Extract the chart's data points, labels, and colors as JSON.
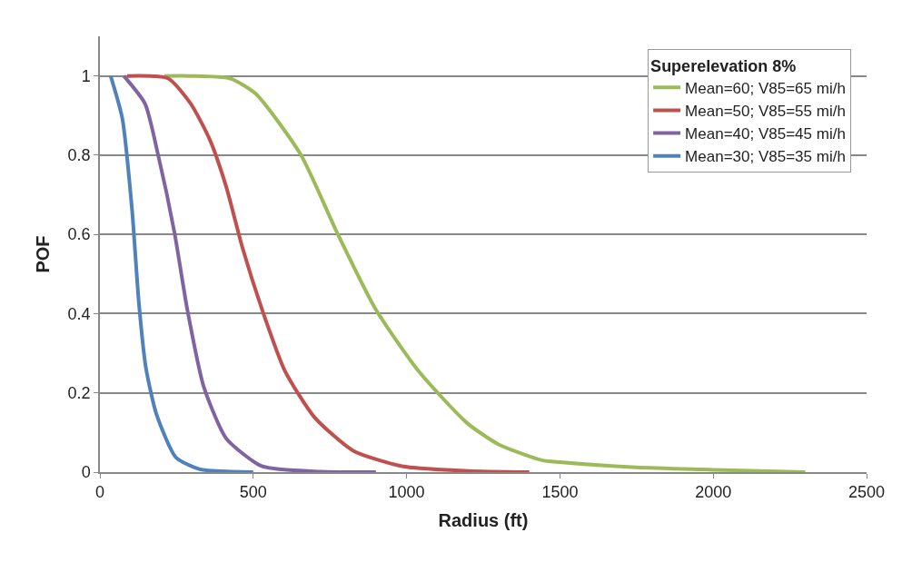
{
  "chart_data": {
    "type": "line",
    "xlabel": "Radius (ft)",
    "ylabel": "POF",
    "legend_title": "Superelevation 8%",
    "xlim": [
      0,
      2500
    ],
    "xticks": [
      0,
      500,
      1000,
      1500,
      2000,
      2500
    ],
    "ylim": [
      0,
      1.1
    ],
    "yticks": [
      0,
      0.2,
      0.4,
      0.6,
      0.8,
      1
    ],
    "grid": "y",
    "legend": "top right",
    "marker": "none",
    "line_style": "solid",
    "series": [
      {
        "name": "Mean=60; V85=65 mi/h",
        "color": "#9bbb59",
        "x": [
          210,
          296,
          423,
          508,
          656,
          773,
          900,
          1038,
          1197,
          1300,
          1441,
          1500,
          1750,
          2000,
          2300
        ],
        "values": [
          1,
          1,
          0.994,
          0.955,
          0.8,
          0.605,
          0.41,
          0.256,
          0.124,
          0.07,
          0.03,
          0.025,
          0.012,
          0.006,
          0
        ]
      },
      {
        "name": "Mean=50; V85=55 mi/h",
        "color": "#c0504d",
        "x": [
          89,
          222,
          296,
          359,
          412,
          465,
          529,
          603,
          699,
          826,
          985,
          1200,
          1400
        ],
        "values": [
          1,
          0.994,
          0.93,
          0.838,
          0.72,
          0.566,
          0.41,
          0.256,
          0.139,
          0.054,
          0.015,
          0.003,
          0
        ]
      },
      {
        "name": "Mean=40; V85=45 mi/h",
        "color": "#8064a2",
        "x": [
          78,
          147,
          190,
          243,
          285,
          338,
          412,
          528,
          719,
          900
        ],
        "values": [
          1,
          0.93,
          0.8,
          0.605,
          0.41,
          0.217,
          0.085,
          0.015,
          0.001,
          0
        ]
      },
      {
        "name": "Mean=30; V85=35 mi/h",
        "color": "#4f81bd",
        "x": [
          35,
          73,
          105,
          127,
          150,
          184,
          248,
          328,
          500
        ],
        "values": [
          1,
          0.893,
          0.66,
          0.427,
          0.263,
          0.147,
          0.037,
          0.007,
          0
        ]
      }
    ]
  }
}
